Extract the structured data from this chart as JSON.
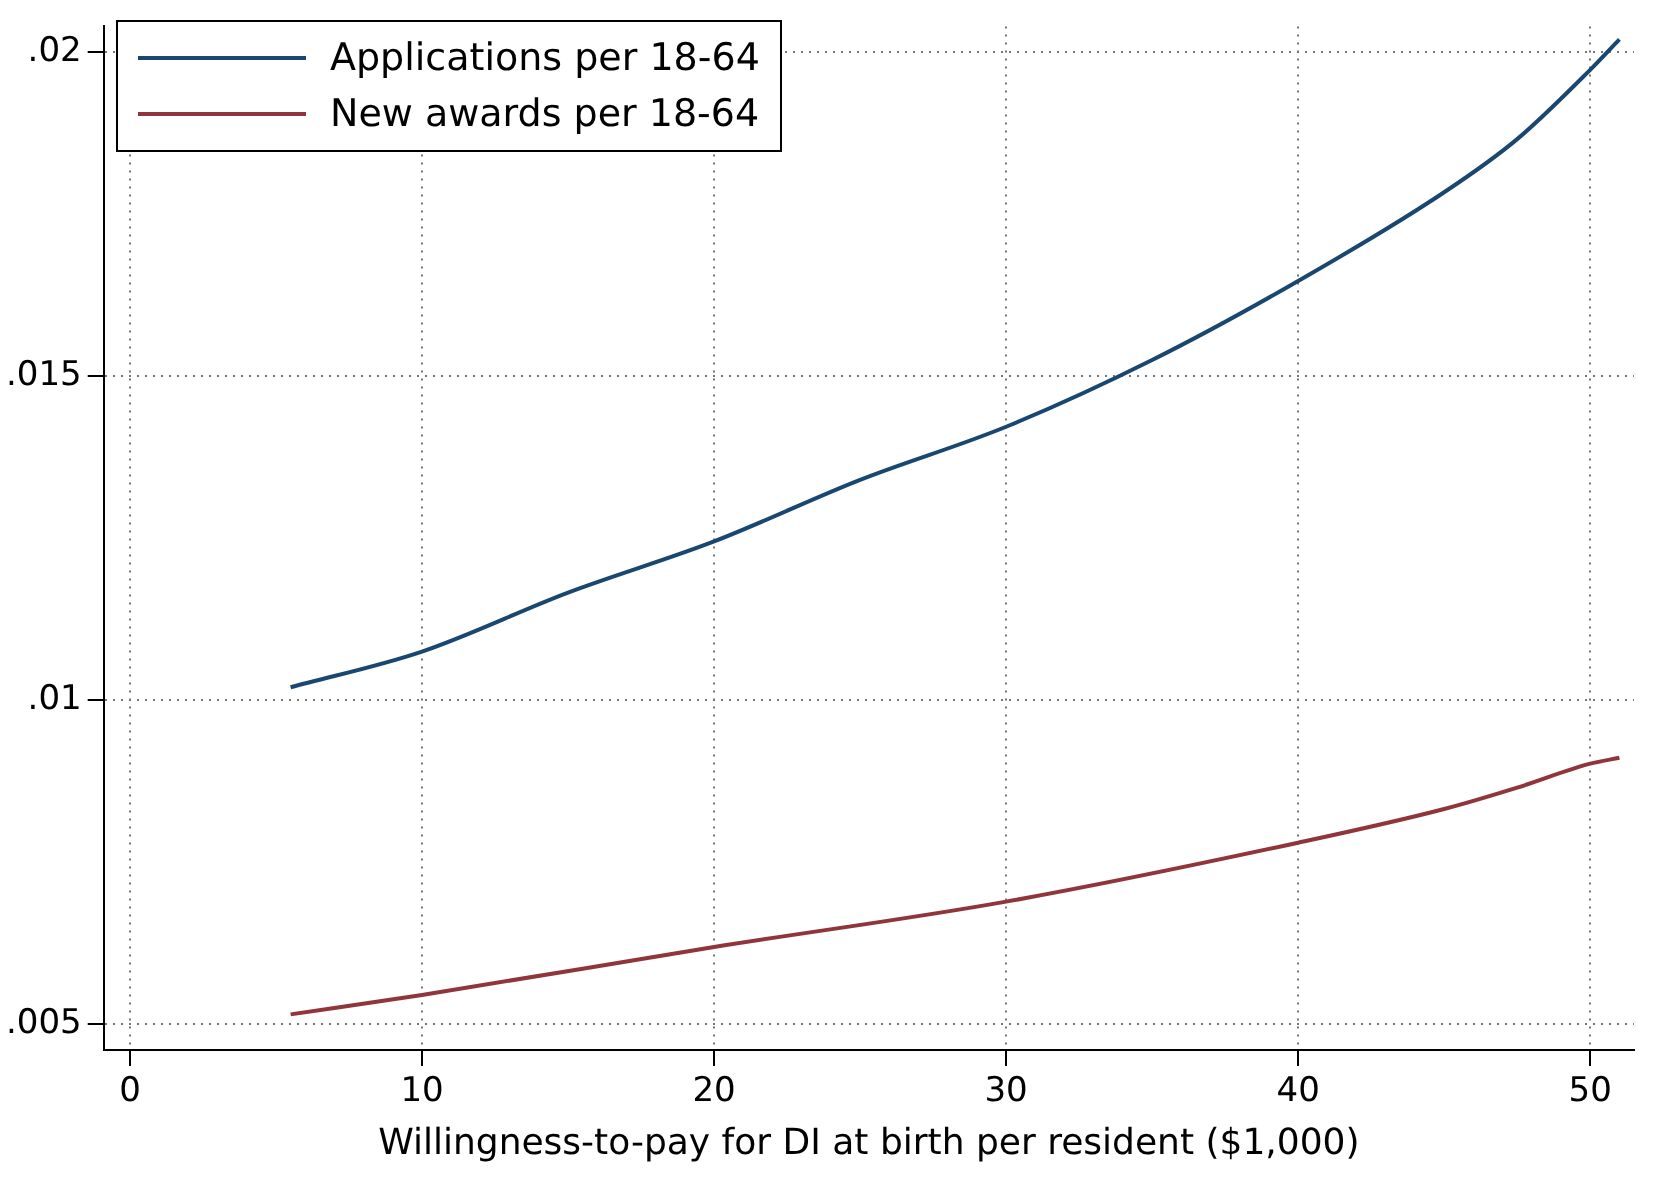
{
  "chart_data": {
    "type": "line",
    "xlabel": "Willingness-to-pay for DI at birth per resident ($1,000)",
    "xlim": [
      -0.9,
      51.5
    ],
    "xticks": [
      0,
      10,
      20,
      30,
      40,
      50
    ],
    "ylim": [
      0.0046,
      0.0204
    ],
    "yticks": [
      {
        "value": 0.005,
        "label": ".005"
      },
      {
        "value": 0.01,
        "label": ".01"
      },
      {
        "value": 0.015,
        "label": ".015"
      },
      {
        "value": 0.02,
        "label": ".02"
      }
    ],
    "grid": true,
    "legend": "top left",
    "marker": "none",
    "line_style": "solid",
    "series": [
      {
        "name": "Applications per 18-64",
        "color": "#1a476f",
        "x": [
          5.5,
          10,
          15,
          20,
          25,
          30,
          35,
          40,
          45,
          47.5,
          50,
          51
        ],
        "values": [
          0.0102,
          0.01075,
          0.01166,
          0.01245,
          0.0134,
          0.01422,
          0.01525,
          0.01647,
          0.01784,
          0.01866,
          0.01973,
          0.0202
        ]
      },
      {
        "name": "New awards per 18-64",
        "color": "#90353b",
        "x": [
          5.5,
          10,
          20,
          30,
          40,
          45,
          47.5,
          50,
          51
        ],
        "values": [
          0.00515,
          0.00545,
          0.00619,
          0.00689,
          0.0078,
          0.00832,
          0.00865,
          0.00902,
          0.00911
        ]
      }
    ]
  }
}
